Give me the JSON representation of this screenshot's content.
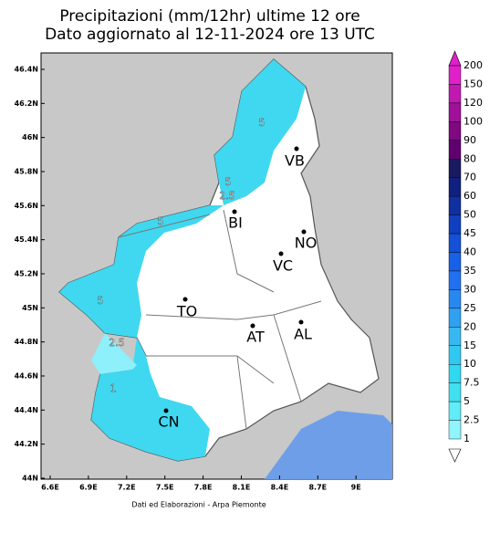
{
  "header": {
    "title_lines": [
      "Precipitazioni (mm/12hr) ultime 12 ore",
      "Dato aggiornato al 12-11-2024 ore 13 UTC"
    ]
  },
  "map": {
    "lat_ticks": [
      "46.4N",
      "46.2N",
      "46N",
      "45.8N",
      "45.6N",
      "45.4N",
      "45.2N",
      "45N",
      "44.8N",
      "44.6N",
      "44.4N",
      "44.2N",
      "44N"
    ],
    "lon_ticks": [
      "6.6E",
      "6.9E",
      "7.2E",
      "7.5E",
      "7.8E",
      "8.1E",
      "8.4E",
      "8.7E",
      "9E"
    ],
    "cities": [
      "VB",
      "BI",
      "NO",
      "VC",
      "TO",
      "AT",
      "AL",
      "CN"
    ],
    "contour_labels": [
      "5",
      "5",
      "2.5",
      "5",
      "5",
      "2.5",
      "1"
    ]
  },
  "colorbar": {
    "levels": [
      200,
      150,
      120,
      100,
      90,
      80,
      70,
      60,
      50,
      45,
      40,
      35,
      30,
      25,
      20,
      15,
      10,
      7.5,
      5,
      2.5,
      1
    ],
    "colors": [
      "#e020c8",
      "#c018b0",
      "#a01098",
      "#800880",
      "#600070",
      "#1a1a60",
      "#102080",
      "#1030a0",
      "#1040c0",
      "#1450d8",
      "#1860e8",
      "#2070f0",
      "#2888f0",
      "#30a0f0",
      "#38b8f0",
      "#30c8f0",
      "#30d8f0",
      "#40e0f0",
      "#60ecf8",
      "#90f4fc"
    ]
  },
  "footer": "Dati ed Elaborazioni - Arpa Piemonte"
}
